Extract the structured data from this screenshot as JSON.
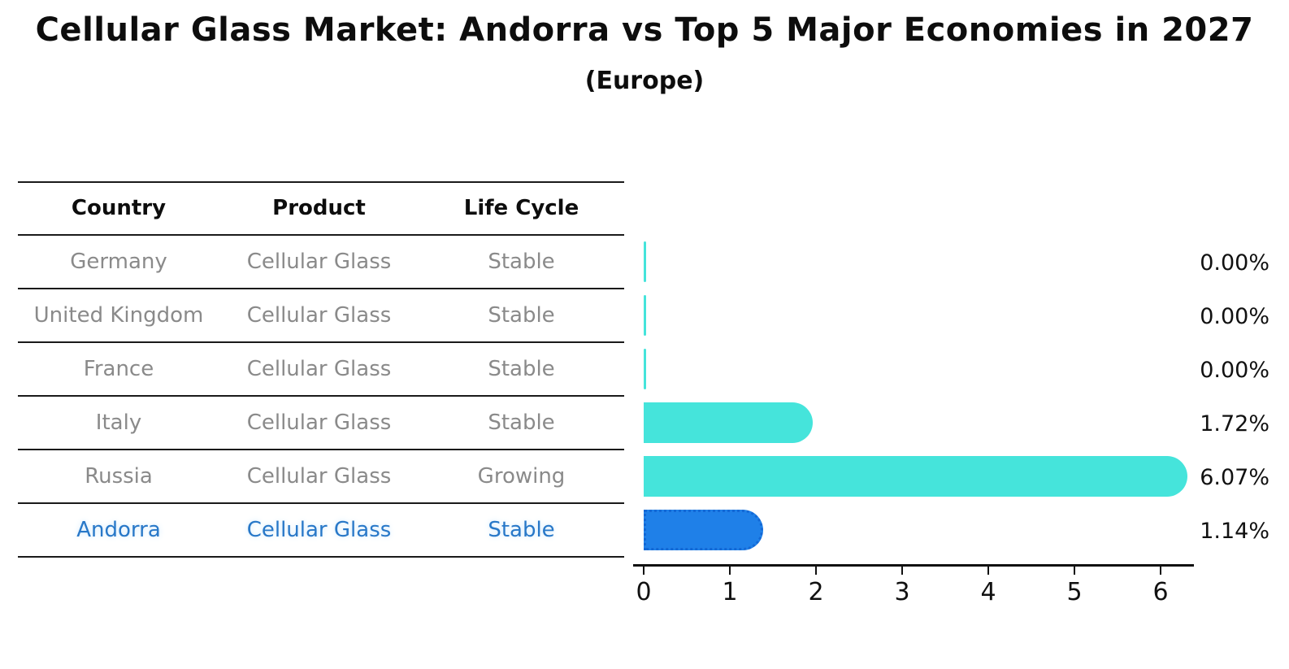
{
  "title": "Cellular Glass Market: Andorra vs Top 5 Major Economies in 2027",
  "subtitle": "(Europe)",
  "table": {
    "headers": [
      "Country",
      "Product",
      "Life Cycle"
    ],
    "rows": [
      {
        "country": "Germany",
        "product": "Cellular Glass",
        "life_cycle": "Stable",
        "highlight": false
      },
      {
        "country": "United Kingdom",
        "product": "Cellular Glass",
        "life_cycle": "Stable",
        "highlight": false
      },
      {
        "country": "France",
        "product": "Cellular Glass",
        "life_cycle": "Stable",
        "highlight": false
      },
      {
        "country": "Italy",
        "product": "Cellular Glass",
        "life_cycle": "Stable",
        "highlight": false
      },
      {
        "country": "Russia",
        "product": "Cellular Glass",
        "life_cycle": "Growing",
        "highlight": false
      },
      {
        "country": "Andorra",
        "product": "Cellular Glass",
        "life_cycle": "Stable",
        "highlight": true
      }
    ]
  },
  "chart_data": {
    "type": "bar",
    "orientation": "horizontal",
    "categories": [
      "Germany",
      "United Kingdom",
      "France",
      "Italy",
      "Russia",
      "Andorra"
    ],
    "values": [
      0.0,
      0.0,
      0.0,
      1.72,
      6.07,
      1.14
    ],
    "value_labels": [
      "0.00%",
      "0.00%",
      "0.00%",
      "1.72%",
      "6.07%",
      "1.14%"
    ],
    "highlight_category": "Andorra",
    "x_ticks": [
      0,
      1,
      2,
      3,
      4,
      5,
      6
    ],
    "xlim": [
      0,
      6.4
    ],
    "grid": false,
    "legend": null,
    "colors": {
      "bar_default": "#45e4db",
      "bar_highlight": "#1f80e8",
      "highlight_text": "#2878c8",
      "muted_text": "#8a8a8a",
      "axis": "#111111"
    }
  }
}
